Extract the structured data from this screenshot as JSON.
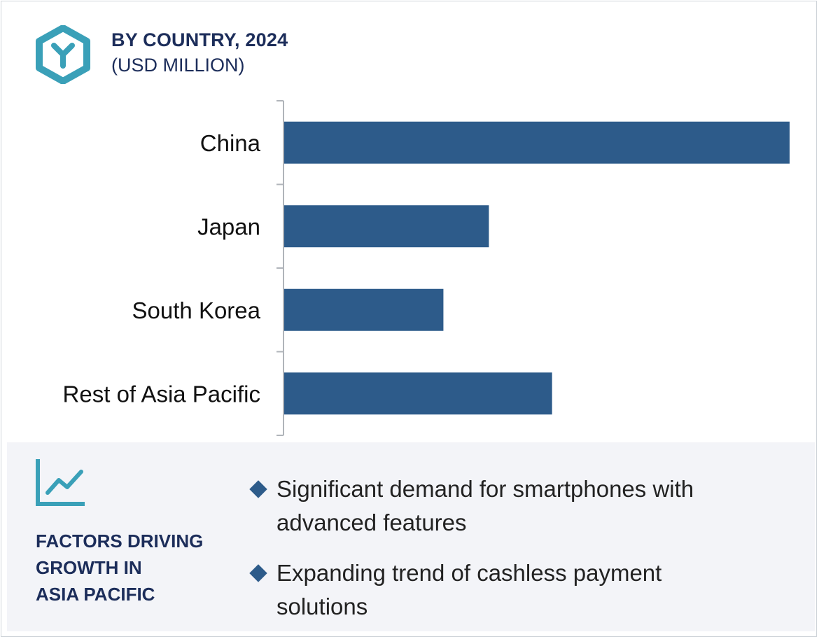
{
  "header": {
    "title": "BY COUNTRY, 2024",
    "subtitle": "(USD MILLION)",
    "logo_icon": "hexagon-y-logo-icon"
  },
  "colors": {
    "bar": "#2d5b8a",
    "accent": "#3aa0b8",
    "title": "#1c2d5a",
    "panel_bg": "#f3f4f8"
  },
  "chart_data": {
    "type": "bar",
    "orientation": "horizontal",
    "categories": [
      "China",
      "Japan",
      "South Korea",
      "Rest of Asia Pacific"
    ],
    "values": [
      100,
      40.5,
      31.5,
      53
    ],
    "title": "BY COUNTRY, 2024",
    "subtitle": "(USD MILLION)",
    "xlabel": "",
    "ylabel": "",
    "xlim": [
      0,
      100
    ],
    "grid": false,
    "legend": "none",
    "value_axis_printed": false
  },
  "factors": {
    "icon": "line-chart-icon",
    "title": "FACTORS DRIVING\nGROWTH IN\nASIA PACIFIC",
    "items": [
      "Significant demand for smartphones with advanced features",
      "Expanding trend of cashless  payment solutions"
    ]
  }
}
